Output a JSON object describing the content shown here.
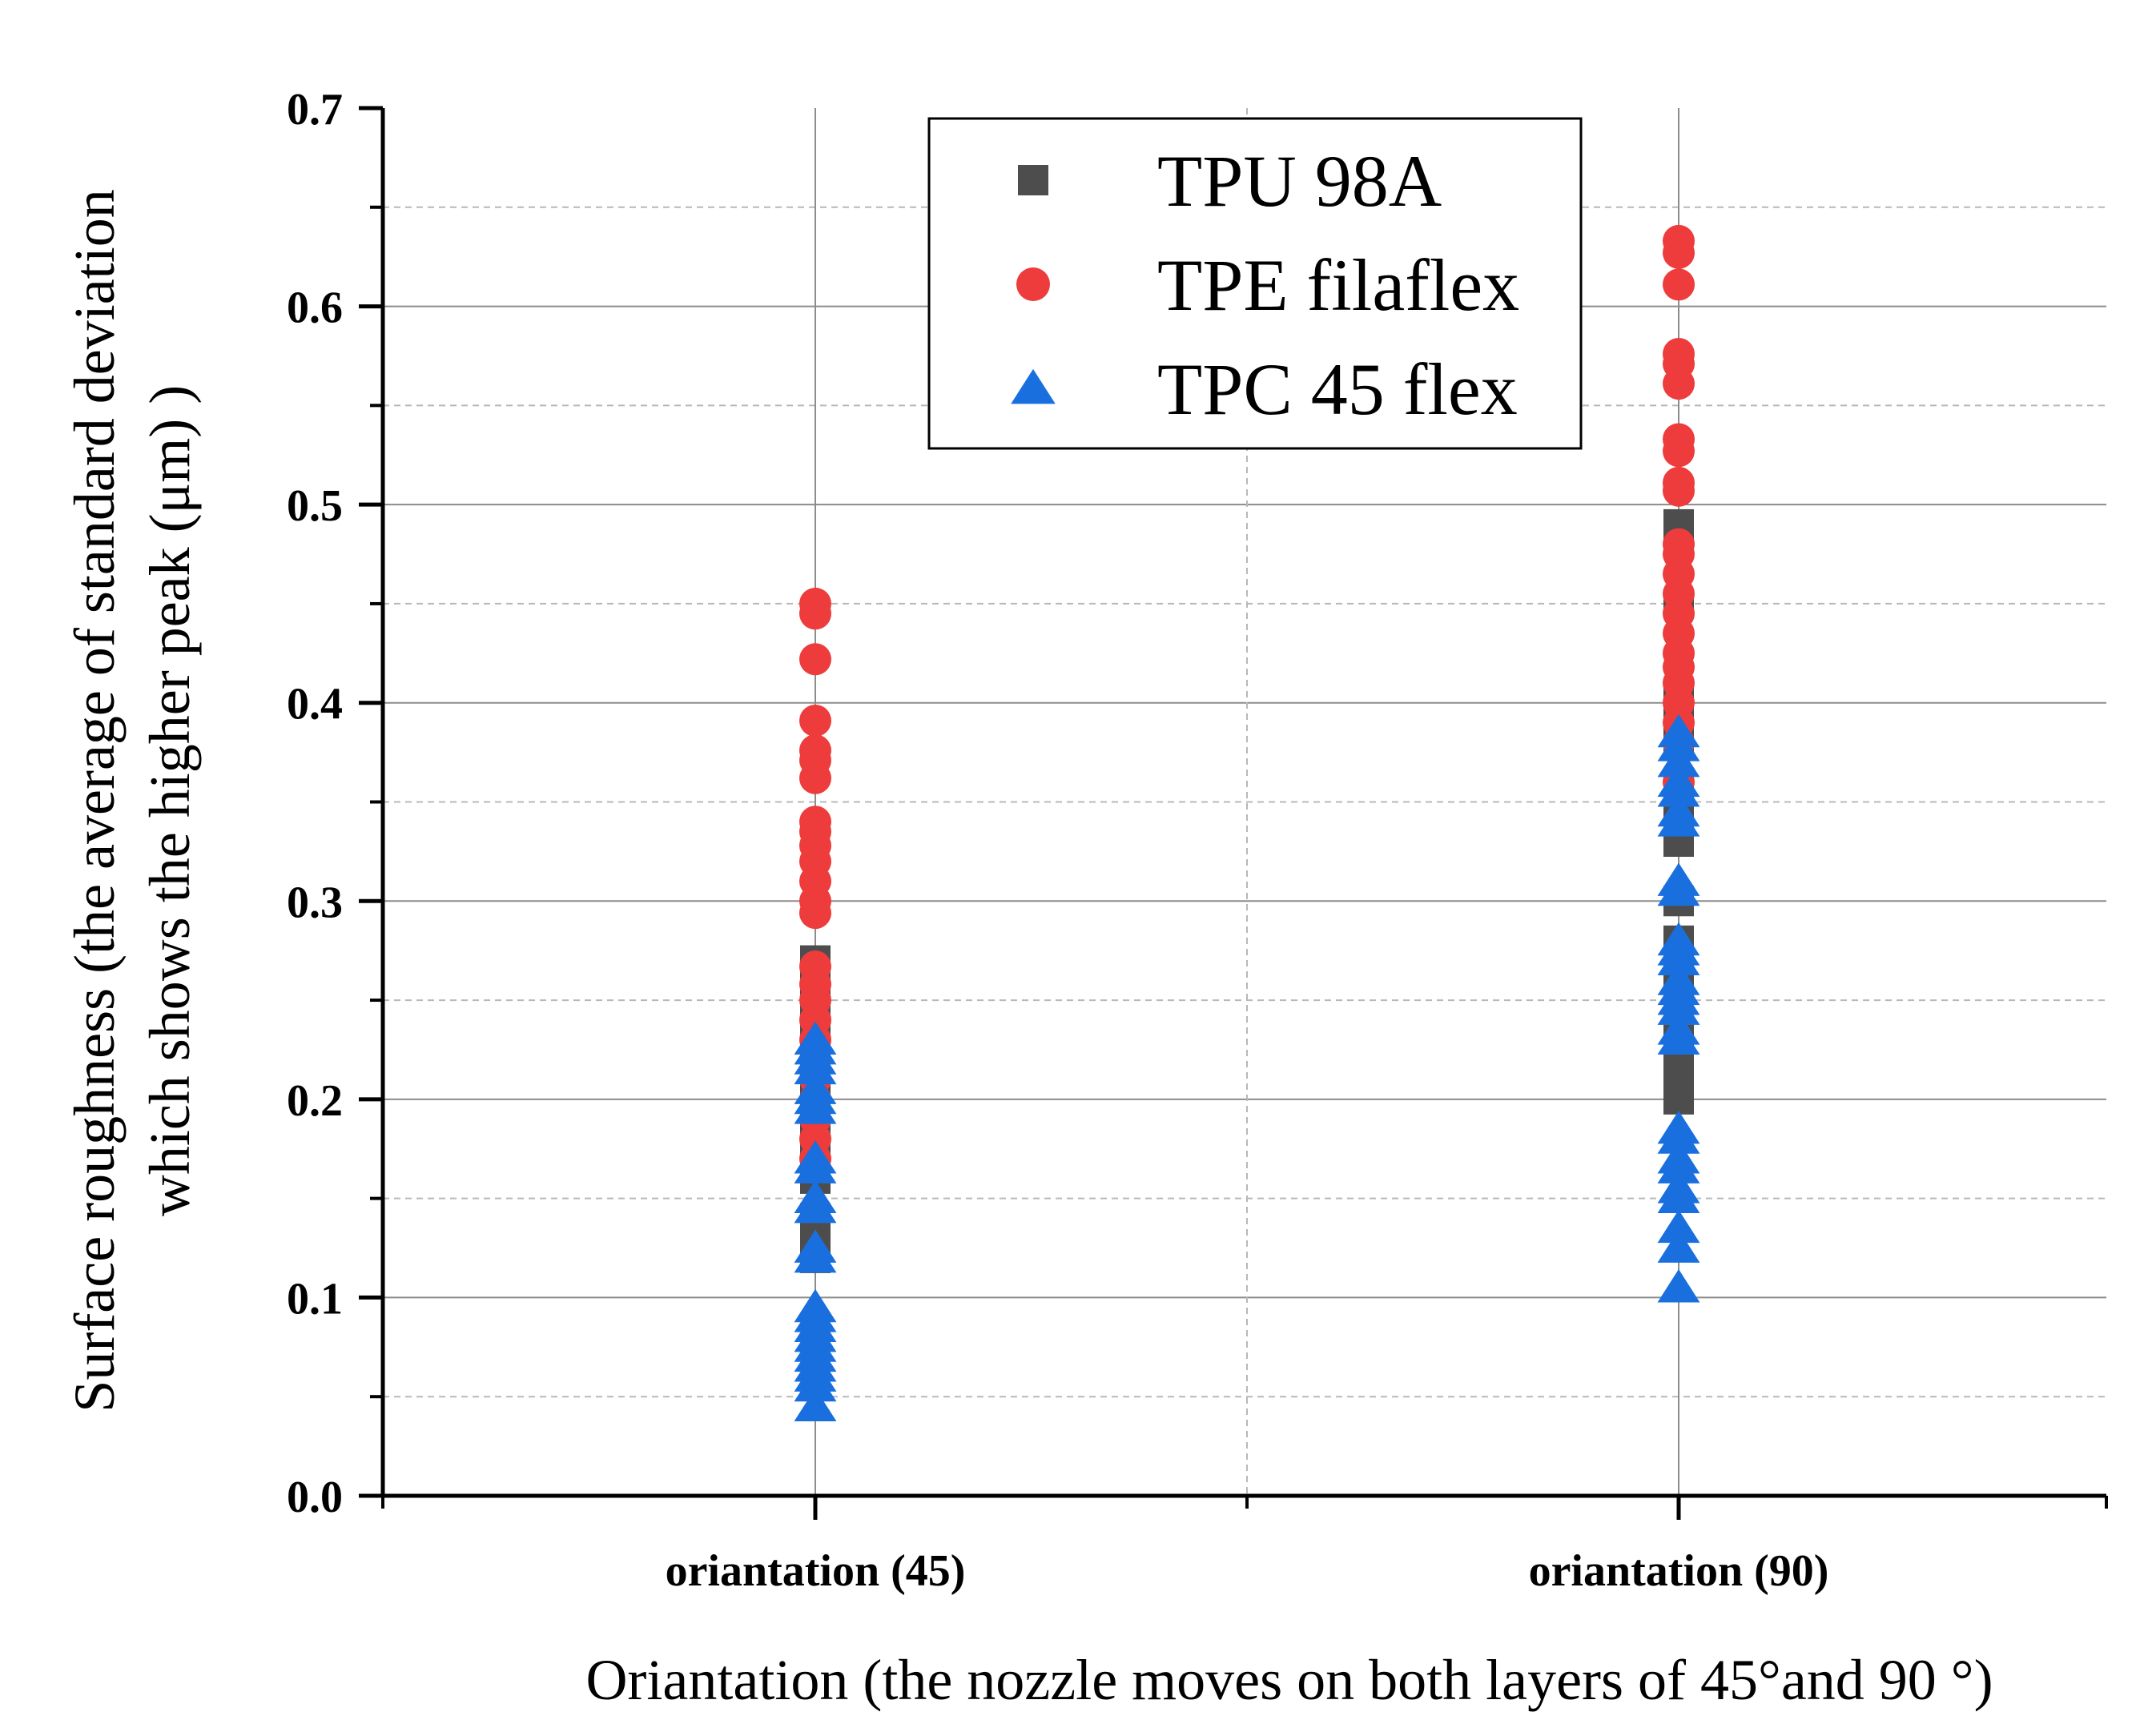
{
  "chart_data": {
    "type": "scatter",
    "title": "",
    "xlabel": "Oriantation (the nozzle moves on both layers of 45°and 90 °)",
    "ylabel_line1": "Surface roughness (the average of standard deviation",
    "ylabel_line2": "which shows the higher peak (μm) )",
    "categories": [
      "oriantation (45)",
      "oriantation (90)"
    ],
    "ylim": [
      0,
      0.7
    ],
    "yticks": [
      "0.0",
      "0.1",
      "0.2",
      "0.3",
      "0.4",
      "0.5",
      "0.6",
      "0.7"
    ],
    "grid": true,
    "legend_position": "top-center",
    "series": [
      {
        "name": "TPU 98A",
        "marker": "square",
        "color": "#4d4d4d",
        "points": [
          {
            "category": 0,
            "values": [
              0.12,
              0.13,
              0.14,
              0.16,
              0.18,
              0.2,
              0.22,
              0.24,
              0.26,
              0.27
            ]
          },
          {
            "category": 1,
            "values": [
              0.2,
              0.21,
              0.22,
              0.23,
              0.26,
              0.28,
              0.3,
              0.33,
              0.35,
              0.38,
              0.4,
              0.45,
              0.49
            ]
          }
        ]
      },
      {
        "name": "TPE filaflex",
        "marker": "circle",
        "color": "#ee3b3b",
        "points": [
          {
            "category": 0,
            "values": [
              0.45,
              0.445,
              0.422,
              0.391,
              0.376,
              0.371,
              0.362,
              0.34,
              0.335,
              0.328,
              0.32,
              0.31,
              0.3,
              0.294,
              0.267,
              0.258,
              0.25,
              0.24,
              0.23,
              0.22,
              0.21,
              0.2,
              0.19,
              0.18,
              0.17
            ]
          },
          {
            "category": 1,
            "values": [
              0.633,
              0.627,
              0.611,
              0.576,
              0.571,
              0.561,
              0.533,
              0.527,
              0.511,
              0.507,
              0.48,
              0.475,
              0.465,
              0.455,
              0.445,
              0.435,
              0.425,
              0.418,
              0.41,
              0.4,
              0.39,
              0.38,
              0.36
            ]
          }
        ]
      },
      {
        "name": "TPC 45 flex",
        "marker": "triangle",
        "color": "#1a6fdf",
        "points": [
          {
            "category": 0,
            "values": [
              0.23,
              0.225,
              0.22,
              0.215,
              0.205,
              0.2,
              0.195,
              0.17,
              0.165,
              0.15,
              0.145,
              0.125,
              0.12,
              0.095,
              0.09,
              0.085,
              0.08,
              0.075,
              0.07,
              0.065,
              0.06,
              0.055,
              0.045
            ]
          },
          {
            "category": 1,
            "values": [
              0.385,
              0.378,
              0.37,
              0.36,
              0.355,
              0.345,
              0.34,
              0.31,
              0.305,
              0.28,
              0.275,
              0.27,
              0.26,
              0.255,
              0.25,
              0.245,
              0.235,
              0.23,
              0.185,
              0.18,
              0.17,
              0.165,
              0.155,
              0.15,
              0.135,
              0.125,
              0.105
            ]
          }
        ]
      }
    ]
  }
}
